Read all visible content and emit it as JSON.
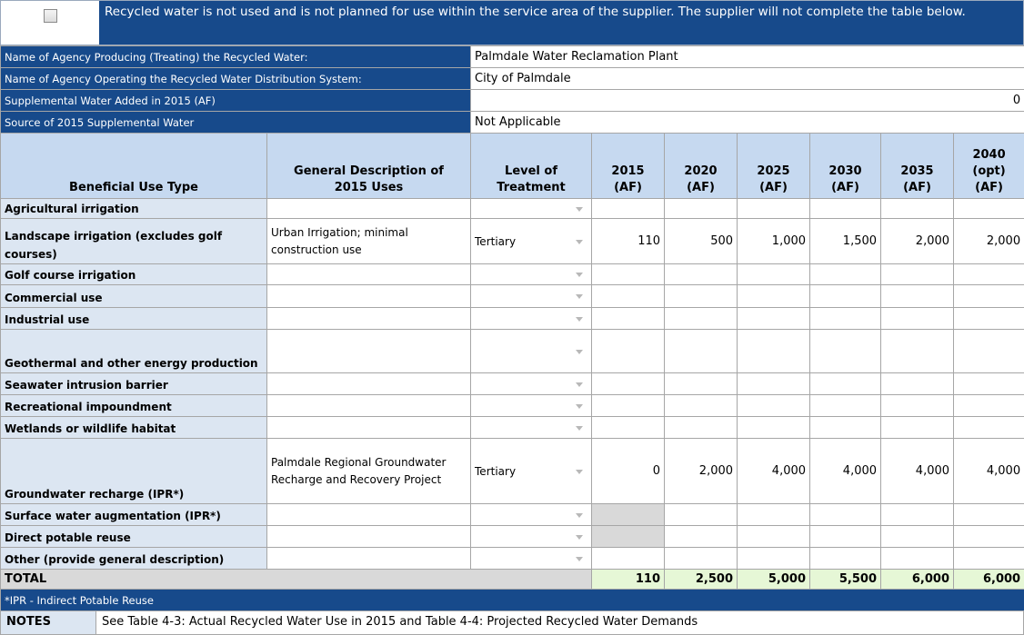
{
  "banner": {
    "checkbox_checked": false,
    "text": "Recycled water is not used and is not planned for use within the service area of the supplier. The supplier will not complete the table below."
  },
  "info": [
    {
      "label": "Name of Agency Producing (Treating) the Recycled Water:",
      "value": "Palmdale Water Reclamation Plant"
    },
    {
      "label": "Name of Agency Operating the Recycled Water Distribution System:",
      "value": "City of Palmdale"
    },
    {
      "label": "Supplemental Water Added in 2015 (AF)",
      "value": "0"
    },
    {
      "label": "Source of 2015 Supplemental Water",
      "value": "Not Applicable"
    }
  ],
  "table": {
    "headers": [
      "Beneficial Use Type",
      "General Description of 2015 Uses",
      "Level of Treatment",
      "2015 (AF)",
      "2020 (AF)",
      "2025 (AF)",
      "2030 (AF)",
      "2035 (AF)",
      "2040 (opt) (AF)"
    ],
    "rows": [
      {
        "use": "Agricultural irrigation",
        "description": null,
        "treatment": null,
        "values": [
          null,
          null,
          null,
          null,
          null,
          null
        ]
      },
      {
        "use": "Landscape irrigation (excludes golf courses)",
        "description": "Urban Irrigation; minimal construction use",
        "treatment": "Tertiary",
        "values": [
          "110",
          "500",
          "1,000",
          "1,500",
          "2,000",
          "2,000"
        ]
      },
      {
        "use": "Golf course irrigation",
        "description": null,
        "treatment": null,
        "values": [
          null,
          null,
          null,
          null,
          null,
          null
        ]
      },
      {
        "use": "Commercial use",
        "description": null,
        "treatment": null,
        "values": [
          null,
          null,
          null,
          null,
          null,
          null
        ]
      },
      {
        "use": "Industrial use",
        "description": null,
        "treatment": null,
        "values": [
          null,
          null,
          null,
          null,
          null,
          null
        ]
      },
      {
        "use": "Geothermal and other energy production",
        "description": null,
        "treatment": null,
        "values": [
          null,
          null,
          null,
          null,
          null,
          null
        ]
      },
      {
        "use": "Seawater intrusion barrier",
        "description": null,
        "treatment": null,
        "values": [
          null,
          null,
          null,
          null,
          null,
          null
        ]
      },
      {
        "use": "Recreational impoundment",
        "description": null,
        "treatment": null,
        "values": [
          null,
          null,
          null,
          null,
          null,
          null
        ]
      },
      {
        "use": "Wetlands or wildlife habitat",
        "description": null,
        "treatment": null,
        "values": [
          null,
          null,
          null,
          null,
          null,
          null
        ]
      },
      {
        "use": "Groundwater recharge (IPR*)",
        "description": "Palmdale Regional Groundwater Recharge and Recovery Project",
        "treatment": "Tertiary",
        "values": [
          "0",
          "2,000",
          "4,000",
          "4,000",
          "4,000",
          "4,000"
        ]
      },
      {
        "use": "Surface water augmentation (IPR*)",
        "description": null,
        "treatment": null,
        "values": [
          null,
          null,
          null,
          null,
          null,
          null
        ]
      },
      {
        "use": "Direct potable reuse",
        "description": null,
        "treatment": null,
        "values": [
          null,
          null,
          null,
          null,
          null,
          null
        ]
      },
      {
        "use": "Other (provide general description)",
        "description": null,
        "treatment": null,
        "values": [
          null,
          null,
          null,
          null,
          null,
          null
        ]
      }
    ],
    "total": {
      "label": "TOTAL",
      "values": [
        "110",
        "2,500",
        "5,000",
        "5,500",
        "6,000",
        "6,000"
      ]
    }
  },
  "footnote": "*IPR - Indirect Potable Reuse",
  "notes": {
    "label": "NOTES",
    "text": "See Table 4-3: Actual Recycled Water Use in 2015 and Table 4-4: Projected Recycled Water Demands"
  }
}
